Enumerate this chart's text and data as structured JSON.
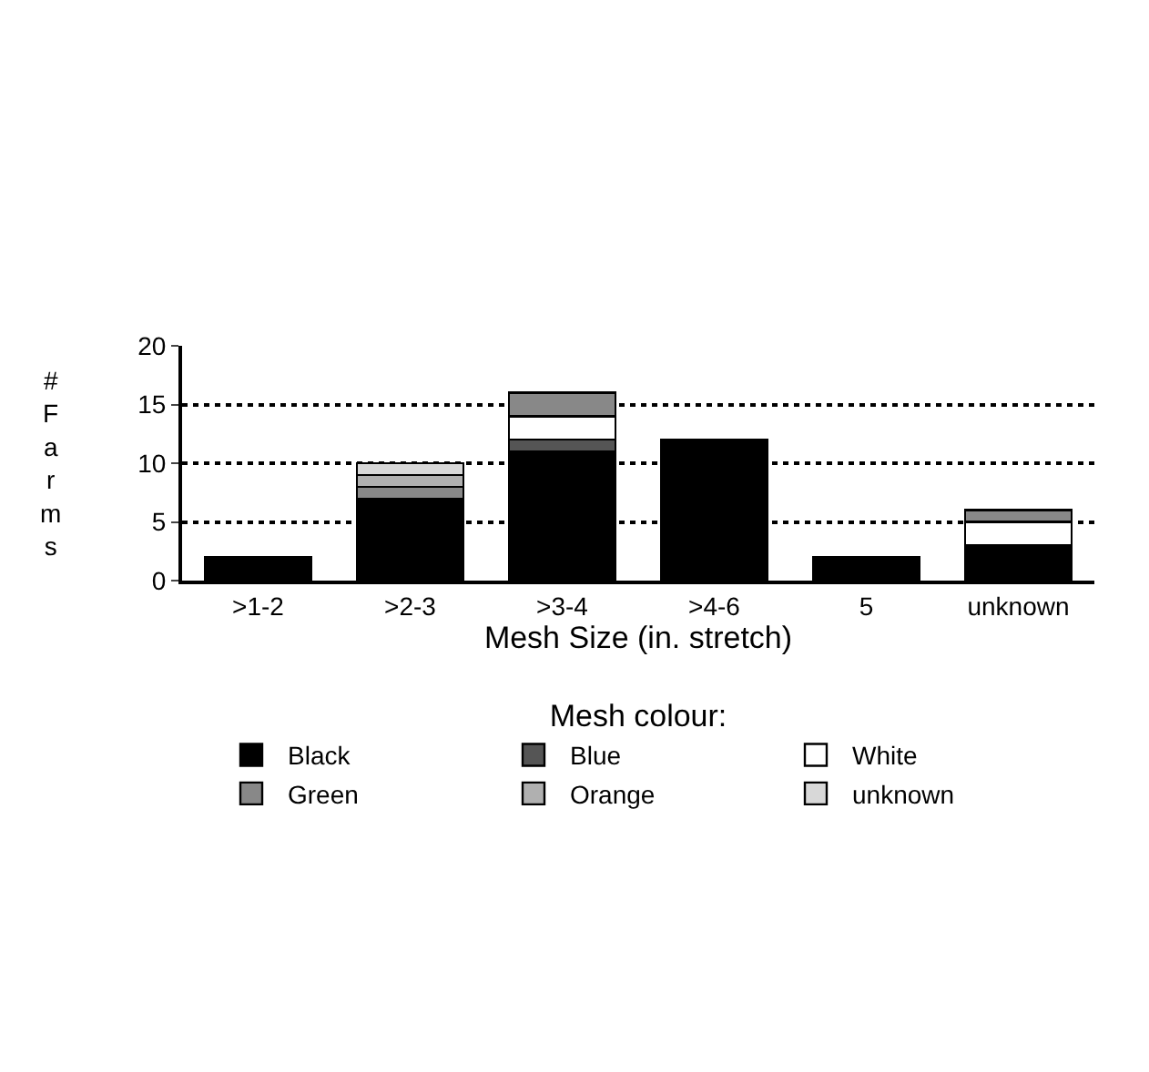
{
  "chart_data": {
    "type": "bar",
    "stacked": true,
    "xlabel": "Mesh Size (in. stretch)",
    "ylabel": "# Farms",
    "legend_title": "Mesh colour:",
    "categories": [
      ">1-2",
      ">2-3",
      ">3-4",
      ">4-6",
      "5",
      "unknown"
    ],
    "series": [
      {
        "name": "Black",
        "color": "#000000",
        "values": [
          2,
          7,
          11,
          12,
          2,
          3
        ]
      },
      {
        "name": "Blue",
        "color": "#555555",
        "values": [
          null,
          null,
          1,
          null,
          null,
          null
        ]
      },
      {
        "name": "White",
        "color": "#ffffff",
        "values": [
          null,
          null,
          2,
          null,
          null,
          2
        ]
      },
      {
        "name": "Green",
        "color": "#888888",
        "values": [
          null,
          1,
          2,
          null,
          null,
          1
        ]
      },
      {
        "name": "Orange",
        "color": "#b0b0b0",
        "values": [
          null,
          1,
          null,
          null,
          null,
          null
        ]
      },
      {
        "name": "unknown",
        "color": "#d8d8d8",
        "values": [
          null,
          1,
          null,
          null,
          null,
          null
        ]
      }
    ],
    "ylim": [
      0,
      20
    ],
    "yticks": [
      0,
      5,
      10,
      15,
      20
    ],
    "grid": "y",
    "line_style": "dotted",
    "legend": "bottom"
  }
}
